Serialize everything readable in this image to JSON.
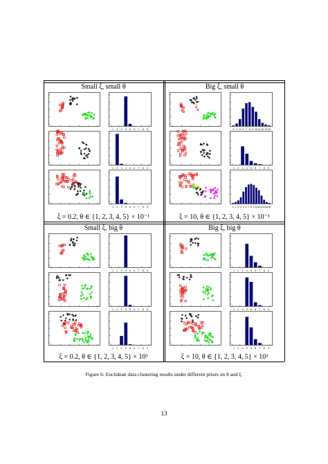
{
  "figure": {
    "caption": "Figure 6: Euclidean data clustering results under different priors on θ and ξ.",
    "quadrants": [
      {
        "title": "Small ξ, small θ",
        "subcaption": "ξ = 0.2, θ ∈ {1, 2, 3, 4, 5} × 10⁻¹"
      },
      {
        "title": "Big ξ, small θ",
        "subcaption": "ξ = 10, θ ∈ {1, 2, 3, 4, 5} × 10⁻¹"
      },
      {
        "title": "Small ξ, big θ",
        "subcaption": "ξ = 0.2, θ ∈ {1, 2, 3, 4, 5} × 10³"
      },
      {
        "title": "Big ξ, big θ",
        "subcaption": "ξ = 10, θ ∈ {1, 2, 3, 4, 5} × 10³"
      }
    ],
    "colors": {
      "red": "#e0201c",
      "black": "#222222",
      "green": "#22dd22",
      "magenta": "#ee22ee",
      "yellow": "#e8e820",
      "bar": "#0a0a78"
    }
  },
  "chart_data": [
    {
      "type": "bar",
      "quadrant": 0,
      "row": 0,
      "categories": [
        "1",
        "2",
        "3",
        "4",
        "5",
        "6",
        "7",
        "8",
        "9"
      ],
      "values": [
        0,
        0,
        0,
        0.93,
        0.07,
        0,
        0,
        0,
        0
      ]
    },
    {
      "type": "bar",
      "quadrant": 0,
      "row": 1,
      "categories": [
        "1",
        "2",
        "3",
        "4",
        "5",
        "6",
        "7",
        "8",
        "9"
      ],
      "values": [
        0,
        0.97,
        0.03,
        0,
        0,
        0,
        0,
        0,
        0
      ]
    },
    {
      "type": "bar",
      "quadrant": 0,
      "row": 2,
      "categories": [
        "1",
        "2",
        "3",
        "4",
        "5",
        "6",
        "7",
        "8",
        "9"
      ],
      "values": [
        0,
        0.85,
        0.13,
        0.02,
        0,
        0,
        0,
        0,
        0
      ]
    },
    {
      "type": "bar",
      "quadrant": 1,
      "row": 0,
      "categories": [
        "3",
        "4",
        "5",
        "6",
        "7",
        "8",
        "9",
        "10",
        "11",
        "12",
        "13",
        "14"
      ],
      "values": [
        0.02,
        0.08,
        0.22,
        0.55,
        0.72,
        0.75,
        0.6,
        0.45,
        0.22,
        0.1,
        0.05,
        0.02
      ]
    },
    {
      "type": "bar",
      "quadrant": 1,
      "row": 1,
      "categories": [
        "1",
        "2",
        "3",
        "4",
        "5",
        "6",
        "7",
        "8",
        "9"
      ],
      "values": [
        0,
        0,
        0.58,
        0.35,
        0.12,
        0.05,
        0.02,
        0,
        0
      ]
    },
    {
      "type": "bar",
      "quadrant": 1,
      "row": 2,
      "categories": [
        "1",
        "2",
        "3",
        "4",
        "5",
        "6",
        "7",
        "8",
        "9",
        "10",
        "11",
        "12",
        "13",
        "14",
        "15"
      ],
      "values": [
        0.02,
        0.05,
        0.1,
        0.2,
        0.38,
        0.52,
        0.6,
        0.62,
        0.58,
        0.5,
        0.42,
        0.25,
        0.12,
        0.05,
        0.02
      ]
    },
    {
      "type": "bar",
      "quadrant": 2,
      "row": 0,
      "categories": [
        "1",
        "2",
        "3",
        "4",
        "5",
        "6",
        "7",
        "8",
        "9"
      ],
      "values": [
        0,
        0,
        0,
        1.0,
        0,
        0,
        0,
        0,
        0
      ]
    },
    {
      "type": "bar",
      "quadrant": 2,
      "row": 1,
      "categories": [
        "1",
        "2",
        "3",
        "4",
        "5",
        "6",
        "7",
        "8",
        "9"
      ],
      "values": [
        0,
        0,
        0,
        0.95,
        0.04,
        0,
        0,
        0,
        0
      ]
    },
    {
      "type": "bar",
      "quadrant": 2,
      "row": 2,
      "categories": [
        "1",
        "2",
        "3",
        "4",
        "5",
        "6",
        "7",
        "8",
        "9"
      ],
      "values": [
        0,
        0,
        0.28,
        0.7,
        0.02,
        0,
        0,
        0,
        0
      ]
    },
    {
      "type": "bar",
      "quadrant": 3,
      "row": 0,
      "categories": [
        "1",
        "2",
        "3",
        "4",
        "5",
        "6",
        "7",
        "8",
        "9"
      ],
      "values": [
        0,
        0,
        0,
        0.74,
        0.36,
        0.16,
        0.05,
        0,
        0
      ]
    },
    {
      "type": "bar",
      "quadrant": 3,
      "row": 1,
      "categories": [
        "1",
        "2",
        "3",
        "4",
        "5",
        "6",
        "7",
        "8",
        "9"
      ],
      "values": [
        0,
        0,
        0,
        0.9,
        0.76,
        0.12,
        0.03,
        0,
        0
      ]
    },
    {
      "type": "bar",
      "quadrant": 3,
      "row": 2,
      "categories": [
        "1",
        "2",
        "3",
        "4",
        "5",
        "6",
        "7",
        "8",
        "9"
      ],
      "values": [
        0,
        0,
        0,
        0.88,
        0.55,
        0.18,
        0.06,
        0,
        0
      ]
    }
  ],
  "page_number": "13"
}
